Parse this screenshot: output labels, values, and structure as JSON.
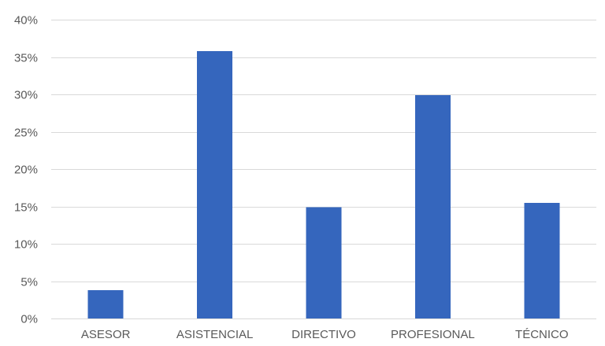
{
  "chart_data": {
    "type": "bar",
    "title": "",
    "xlabel": "",
    "ylabel": "",
    "categories": [
      "ASESOR",
      "ASISTENCIAL",
      "DIRECTIVO",
      "PROFESIONAL",
      "TÉCNICO"
    ],
    "values": [
      3.8,
      35.8,
      14.9,
      29.9,
      15.5
    ],
    "value_unit": "%",
    "ylim": [
      0,
      40
    ],
    "yticks": [
      0,
      5,
      10,
      15,
      20,
      25,
      30,
      35,
      40
    ],
    "ytick_labels": [
      "0%",
      "5%",
      "10%",
      "15%",
      "20%",
      "25%",
      "30%",
      "35%",
      "40%"
    ],
    "grid": true,
    "legend": "none",
    "bar_color": "#3566bd",
    "grid_color": "#d9d9d9",
    "label_color": "#595959"
  }
}
